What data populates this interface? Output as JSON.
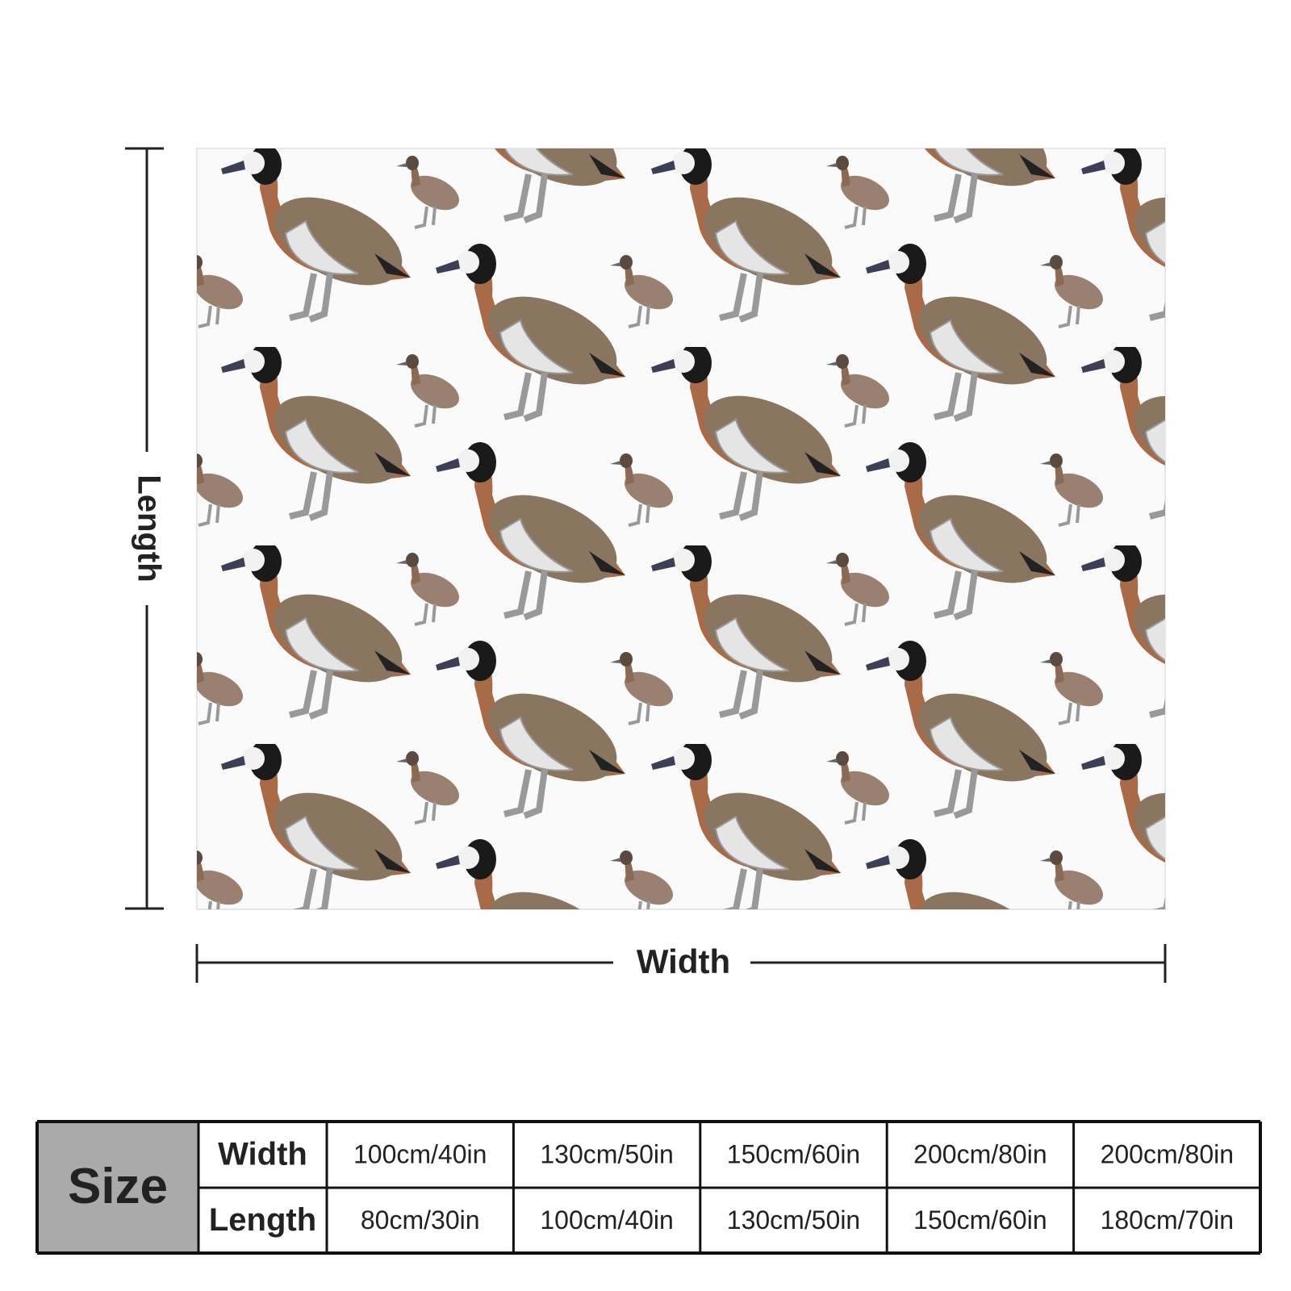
{
  "diagram": {
    "length_label": "Length",
    "width_label": "Width"
  },
  "table": {
    "title": "Size",
    "row_headers": [
      "Width",
      "Length"
    ],
    "rows": [
      [
        "100cm/40in",
        "130cm/50in",
        "150cm/60in",
        "200cm/80in",
        "200cm/80in"
      ],
      [
        "80cm/30in",
        "100cm/40in",
        "130cm/50in",
        "150cm/60in",
        "180cm/70in"
      ]
    ]
  }
}
